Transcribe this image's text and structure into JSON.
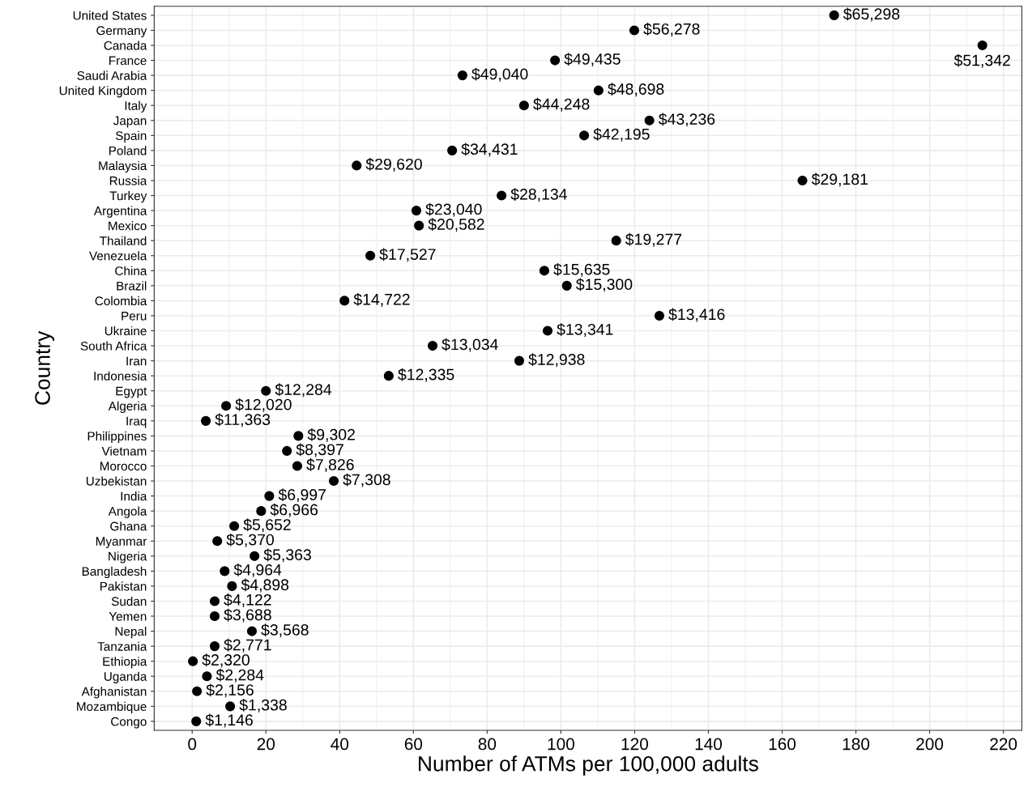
{
  "chart_data": {
    "type": "scatter",
    "orientation": "horizontal",
    "xlabel": "Number of ATMs per 100,000 adults",
    "ylabel": "Country",
    "categories": [
      "United States",
      "Germany",
      "Canada",
      "France",
      "Saudi Arabia",
      "United Kingdom",
      "Italy",
      "Japan",
      "Spain",
      "Poland",
      "Malaysia",
      "Russia",
      "Turkey",
      "Argentina",
      "Mexico",
      "Thailand",
      "Venezuela",
      "China",
      "Brazil",
      "Colombia",
      "Peru",
      "Ukraine",
      "South Africa",
      "Iran",
      "Indonesia",
      "Egypt",
      "Algeria",
      "Iraq",
      "Philippines",
      "Vietnam",
      "Morocco",
      "Uzbekistan",
      "India",
      "Angola",
      "Ghana",
      "Myanmar",
      "Nigeria",
      "Bangladesh",
      "Pakistan",
      "Sudan",
      "Yemen",
      "Nepal",
      "Tanzania",
      "Ethiopia",
      "Uganda",
      "Afghanistan",
      "Mozambique",
      "Congo"
    ],
    "values": [
      174.1,
      119.9,
      214.3,
      98.4,
      73.3,
      110.2,
      90.0,
      124.0,
      106.3,
      70.5,
      44.6,
      165.5,
      83.9,
      60.8,
      61.5,
      115.0,
      48.3,
      95.5,
      101.6,
      41.3,
      126.7,
      96.4,
      65.2,
      88.7,
      53.3,
      20.0,
      9.2,
      3.7,
      28.8,
      25.7,
      28.5,
      38.4,
      20.9,
      18.7,
      11.4,
      6.8,
      16.9,
      8.8,
      10.8,
      6.1,
      6.1,
      16.2,
      6.1,
      0.2,
      4.0,
      1.3,
      10.3,
      1.1
    ],
    "annotations": [
      {
        "text": "$65,298",
        "x": 174.1,
        "y": "United States"
      },
      {
        "text": "$56,278",
        "x": 119.9,
        "y": "Germany"
      },
      {
        "text": "$51,342",
        "x": 214.3,
        "y": "Canada"
      },
      {
        "text": "$49,435",
        "x": 98.4,
        "y": "France"
      },
      {
        "text": "$49,040",
        "x": 73.3,
        "y": "Saudi Arabia"
      },
      {
        "text": "$48,698",
        "x": 110.2,
        "y": "United Kingdom"
      },
      {
        "text": "$44,248",
        "x": 90.0,
        "y": "Italy"
      },
      {
        "text": "$43,236",
        "x": 124.0,
        "y": "Japan"
      },
      {
        "text": "$42,195",
        "x": 106.3,
        "y": "Spain"
      },
      {
        "text": "$34,431",
        "x": 70.5,
        "y": "Poland"
      },
      {
        "text": "$29,620",
        "x": 44.6,
        "y": "Malaysia"
      },
      {
        "text": "$29,181",
        "x": 165.5,
        "y": "Russia"
      },
      {
        "text": "$28,134",
        "x": 83.9,
        "y": "Turkey"
      },
      {
        "text": "$23,040",
        "x": 60.8,
        "y": "Argentina"
      },
      {
        "text": "$20,582",
        "x": 61.5,
        "y": "Mexico"
      },
      {
        "text": "$19,277",
        "x": 115.0,
        "y": "Thailand"
      },
      {
        "text": "$17,527",
        "x": 48.3,
        "y": "Venezuela"
      },
      {
        "text": "$15,635",
        "x": 95.5,
        "y": "China"
      },
      {
        "text": "$15,300",
        "x": 101.6,
        "y": "Brazil"
      },
      {
        "text": "$14,722",
        "x": 41.3,
        "y": "Colombia"
      },
      {
        "text": "$13,416",
        "x": 126.7,
        "y": "Peru"
      },
      {
        "text": "$13,341",
        "x": 96.4,
        "y": "Ukraine"
      },
      {
        "text": "$13,034",
        "x": 65.2,
        "y": "South Africa"
      },
      {
        "text": "$12,938",
        "x": 88.7,
        "y": "Iran"
      },
      {
        "text": "$12,335",
        "x": 53.3,
        "y": "Indonesia"
      },
      {
        "text": "$12,284",
        "x": 20.0,
        "y": "Egypt"
      },
      {
        "text": "$12,020",
        "x": 9.2,
        "y": "Algeria"
      },
      {
        "text": "$11,363",
        "x": 3.7,
        "y": "Iraq"
      },
      {
        "text": "$9,302",
        "x": 28.8,
        "y": "Philippines"
      },
      {
        "text": "$8,397",
        "x": 25.7,
        "y": "Vietnam"
      },
      {
        "text": "$7,826",
        "x": 28.5,
        "y": "Morocco"
      },
      {
        "text": "$7,308",
        "x": 38.4,
        "y": "Uzbekistan"
      },
      {
        "text": "$6,997",
        "x": 20.9,
        "y": "India"
      },
      {
        "text": "$6,966",
        "x": 18.7,
        "y": "Angola"
      },
      {
        "text": "$5,652",
        "x": 11.4,
        "y": "Ghana"
      },
      {
        "text": "$5,370",
        "x": 6.8,
        "y": "Myanmar"
      },
      {
        "text": "$5,363",
        "x": 16.9,
        "y": "Nigeria"
      },
      {
        "text": "$4,964",
        "x": 8.8,
        "y": "Bangladesh"
      },
      {
        "text": "$4,898",
        "x": 10.8,
        "y": "Pakistan"
      },
      {
        "text": "$4,122",
        "x": 6.1,
        "y": "Sudan"
      },
      {
        "text": "$3,688",
        "x": 6.1,
        "y": "Yemen"
      },
      {
        "text": "$3,568",
        "x": 16.2,
        "y": "Nepal"
      },
      {
        "text": "$2,771",
        "x": 6.1,
        "y": "Tanzania"
      },
      {
        "text": "$2,320",
        "x": 0.2,
        "y": "Ethiopia"
      },
      {
        "text": "$2,284",
        "x": 4.0,
        "y": "Uganda"
      },
      {
        "text": "$2,156",
        "x": 1.3,
        "y": "Afghanistan"
      },
      {
        "text": "$1,338",
        "x": 10.3,
        "y": "Mozambique"
      },
      {
        "text": "$1,146",
        "x": 1.1,
        "y": "Congo"
      }
    ],
    "color": "#000000",
    "marker": "circle",
    "xlim": [
      -10.3,
      225
    ],
    "xticks": [
      0,
      20,
      40,
      60,
      80,
      100,
      120,
      140,
      160,
      180,
      200,
      220
    ],
    "grid": true
  }
}
